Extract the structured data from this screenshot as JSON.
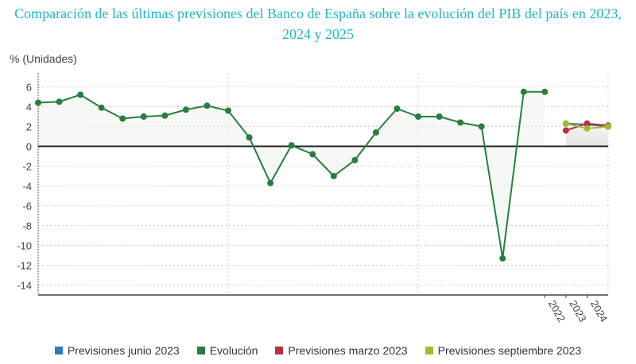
{
  "chart_data": {
    "type": "line",
    "title": "Comparación de las últimas previsiones del Banco de España sobre la evolución del PIB del país en 2023, 2024 y 2025",
    "ylabel": "% (Unidades)",
    "ylim": [
      -15,
      7.4
    ],
    "yticks": [
      6,
      4,
      2,
      0,
      -2,
      -4,
      -6,
      -8,
      -10,
      -12,
      -14
    ],
    "xlim": [
      1998,
      2025
    ],
    "xtick_labels": [
      "2022",
      "2023",
      "2024"
    ],
    "grid": true,
    "legend_position": "bottom",
    "series": [
      {
        "name": "Previsiones junio 2023",
        "color": "#2e7bb8",
        "x": [
          2023,
          2024,
          2025
        ],
        "values": [
          2.3,
          2.2,
          2.0
        ]
      },
      {
        "name": "Evolución",
        "color": "#2a7d3e",
        "x": [
          1998,
          1999,
          2000,
          2001,
          2002,
          2003,
          2004,
          2005,
          2006,
          2007,
          2008,
          2009,
          2010,
          2011,
          2012,
          2013,
          2014,
          2015,
          2016,
          2017,
          2018,
          2019,
          2020,
          2021,
          2022
        ],
        "values": [
          4.4,
          4.5,
          5.2,
          3.9,
          2.8,
          3.0,
          3.1,
          3.7,
          4.1,
          3.6,
          0.9,
          -3.7,
          0.1,
          -0.8,
          -3.0,
          -1.4,
          1.4,
          3.8,
          3.0,
          3.0,
          2.4,
          2.0,
          -11.3,
          5.5,
          5.5
        ]
      },
      {
        "name": "Previsiones marzo 2023",
        "color": "#b8313f",
        "x": [
          2023,
          2024,
          2025
        ],
        "values": [
          1.6,
          2.3,
          2.1
        ]
      },
      {
        "name": "Previsiones septiembre 2023",
        "color": "#a8b832",
        "x": [
          2023,
          2024,
          2025
        ],
        "values": [
          2.3,
          1.8,
          2.0
        ]
      }
    ]
  }
}
